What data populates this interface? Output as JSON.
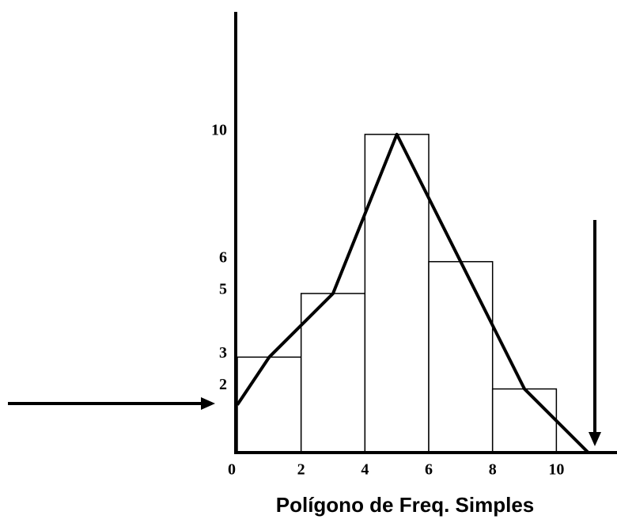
{
  "chart_data": {
    "type": "histogram",
    "title": "Polígono de Freq. Simples",
    "bins": [
      0,
      2,
      4,
      6,
      8,
      10
    ],
    "counts": [
      3,
      5,
      10,
      6,
      2
    ],
    "color": "#ffffff",
    "edge_color": "#000000",
    "polygon": {
      "type": "line",
      "color": "#000000",
      "x": [
        0,
        1,
        3,
        5,
        7,
        9,
        11
      ],
      "values": [
        1.5,
        3,
        5,
        10,
        6,
        2,
        0
      ]
    },
    "xlim": [
      0,
      11.9
    ],
    "ylim": [
      0,
      13.85
    ],
    "xticks": [
      0,
      2,
      4,
      6,
      8,
      10
    ],
    "yticks": [
      2,
      3,
      5,
      6,
      10
    ],
    "grid": false
  }
}
